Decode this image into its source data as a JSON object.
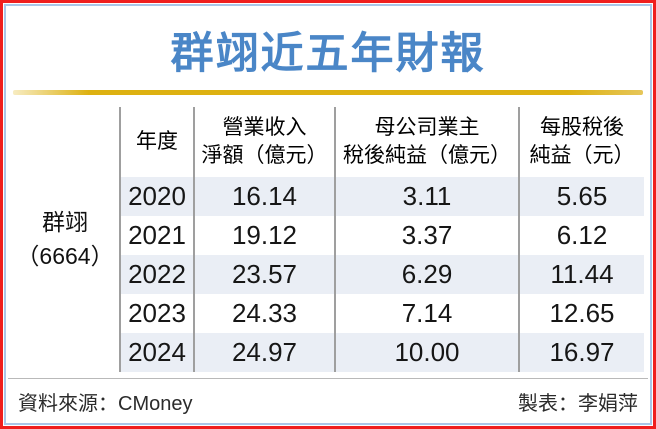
{
  "title": "群翊近五年財報",
  "company": {
    "name": "群翊",
    "ticker": "（6664）"
  },
  "table": {
    "headers": [
      {
        "line1": "年度",
        "line2": ""
      },
      {
        "line1": "營業收入",
        "line2": "淨額（億元）"
      },
      {
        "line1": "母公司業主",
        "line2": "稅後純益（億元）"
      },
      {
        "line1": "每股稅後",
        "line2": "純益（元）"
      }
    ],
    "rows": [
      {
        "year": "2020",
        "revenue": "16.14",
        "profit": "3.11",
        "eps": "5.65"
      },
      {
        "year": "2021",
        "revenue": "19.12",
        "profit": "3.37",
        "eps": "6.12"
      },
      {
        "year": "2022",
        "revenue": "23.57",
        "profit": "6.29",
        "eps": "11.44"
      },
      {
        "year": "2023",
        "revenue": "24.33",
        "profit": "7.14",
        "eps": "12.65"
      },
      {
        "year": "2024",
        "revenue": "24.97",
        "profit": "10.00",
        "eps": "16.97"
      }
    ]
  },
  "footer": {
    "source": "資料來源：CMoney",
    "credit": "製表：李娟萍"
  },
  "colors": {
    "frame_red": "#f01e1e",
    "border_blue": "#aac6e8",
    "title_blue": "#4a86c7",
    "gold_line": "#ddb111",
    "row_alt_bg": "#eaeef5",
    "divider_gray": "#9f9f9f"
  },
  "chart_data": {
    "type": "table",
    "title": "群翊近五年財報",
    "entity": "群翊（6664）",
    "columns": [
      "年度",
      "營業收入淨額（億元）",
      "母公司業主稅後純益（億元）",
      "每股稅後純益（元）"
    ],
    "rows": [
      [
        2020,
        16.14,
        3.11,
        5.65
      ],
      [
        2021,
        19.12,
        3.37,
        6.12
      ],
      [
        2022,
        23.57,
        6.29,
        11.44
      ],
      [
        2023,
        24.33,
        7.14,
        12.65
      ],
      [
        2024,
        24.97,
        10.0,
        16.97
      ]
    ],
    "source": "CMoney",
    "credit": "李娟萍"
  }
}
